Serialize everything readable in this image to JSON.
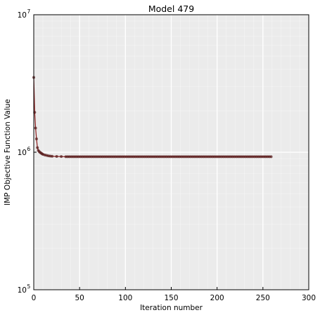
{
  "chart_data": {
    "type": "line",
    "title": "Model 479",
    "xlabel": "Iteration number",
    "ylabel": "IMP Objective Function Value",
    "xlim": [
      0,
      300
    ],
    "ylim": [
      100000,
      10000000
    ],
    "yscale": "log",
    "x_ticks": [
      0,
      50,
      100,
      150,
      200,
      250,
      300
    ],
    "x_tick_labels": [
      "0",
      "50",
      "100",
      "150",
      "200",
      "250",
      "300"
    ],
    "y_ticks": [
      100000,
      1000000,
      10000000
    ],
    "y_tick_labels": [
      {
        "base": "10",
        "exp": "5"
      },
      {
        "base": "10",
        "exp": "6"
      },
      {
        "base": "10",
        "exp": "7"
      }
    ],
    "grid": true,
    "background_color": "#ebebeb",
    "grid_color": "#ffffff",
    "line_color": "#8b1a1a",
    "marker_color": "#5a2020",
    "series": [
      {
        "x": [
          0,
          1,
          2,
          3,
          4,
          5,
          6,
          7,
          8,
          9,
          10,
          12,
          14,
          16,
          18,
          20,
          25,
          30,
          35
        ],
        "y": [
          3500000,
          1950000,
          1500000,
          1250000,
          1080000,
          1030000,
          1010000,
          995000,
          985000,
          975000,
          965000,
          955000,
          948000,
          942000,
          938000,
          935000,
          932000,
          930000,
          928000
        ]
      }
    ],
    "plateau": {
      "y": 928000,
      "x_from": 35,
      "x_to": 260,
      "step": 2
    }
  }
}
